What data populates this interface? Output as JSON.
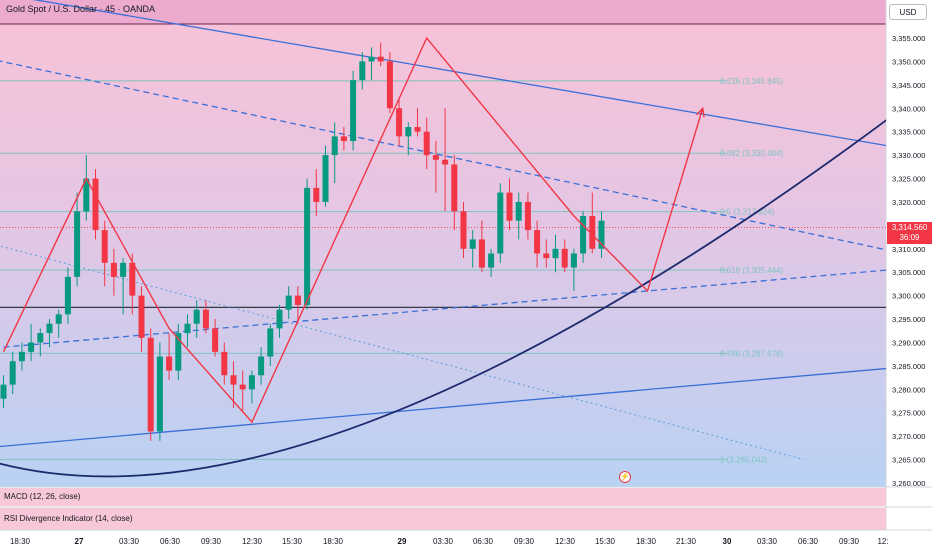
{
  "header": {
    "title": "Gold Spot / U.S. Dollar · 45 · OANDA",
    "currency": "USD"
  },
  "price_tag": {
    "price": "3,314.560",
    "countdown": "36:09"
  },
  "indicators": [
    {
      "label": "MACD (12, 26, close)"
    },
    {
      "label": "RSI Divergence Indicator (14, close)"
    }
  ],
  "event_icon": "lightning-icon",
  "colors": {
    "up": "#089981",
    "down": "#f23645",
    "zigzag": "#f23645",
    "trend_blue": "#3a6fd8",
    "curve": "#1e2a6e",
    "fib": "#7fc3c0",
    "support": "#363a45"
  },
  "chart_data": {
    "type": "candlestick",
    "y_range": [
      3260,
      3358
    ],
    "y_ticks": [
      "3,355.000",
      "3,350.000",
      "3,345.000",
      "3,340.000",
      "3,335.000",
      "3,330.000",
      "3,325.000",
      "3,320.000",
      "3,315.000",
      "3,310.000",
      "3,305.000",
      "3,300.000",
      "3,295.000",
      "3,290.000",
      "3,285.000",
      "3,280.000",
      "3,275.000",
      "3,270.000",
      "3,265.000",
      "3,260.000"
    ],
    "x_ticks": [
      "18:30",
      "27",
      "03:30",
      "06:30",
      "09:30",
      "12:30",
      "15:30",
      "18:30",
      "29",
      "03:30",
      "06:30",
      "09:30",
      "12:30",
      "15:30",
      "18:30",
      "21:30",
      "30",
      "03:30",
      "06:30",
      "09:30",
      "12:"
    ],
    "fib_levels": [
      {
        "label": "0.236 (3,345.845)",
        "price": 3345.845
      },
      {
        "label": "0.382 (3,330.404)",
        "price": 3330.404
      },
      {
        "label": "0.5 (3,317.924)",
        "price": 3317.924
      },
      {
        "label": "0.618 (3,305.444)",
        "price": 3305.444
      },
      {
        "label": "0.786 (3,287.676)",
        "price": 3287.676
      },
      {
        "label": "1 (3,265.043)",
        "price": 3265.043
      }
    ],
    "current_price": 3314.56,
    "support_level": 3297.5,
    "candles": [
      [
        3278,
        3283,
        3276,
        3281
      ],
      [
        3281,
        3288,
        3279,
        3286
      ],
      [
        3286,
        3290,
        3284,
        3288
      ],
      [
        3288,
        3294,
        3286,
        3290
      ],
      [
        3290,
        3293,
        3287,
        3292
      ],
      [
        3292,
        3295,
        3289,
        3294
      ],
      [
        3294,
        3297,
        3291,
        3296
      ],
      [
        3296,
        3306,
        3294,
        3304
      ],
      [
        3304,
        3322,
        3302,
        3318
      ],
      [
        3318,
        3330,
        3316,
        3325
      ],
      [
        3325,
        3327,
        3312,
        3314
      ],
      [
        3314,
        3316,
        3302,
        3307
      ],
      [
        3307,
        3310,
        3300,
        3304
      ],
      [
        3304,
        3308,
        3296,
        3307
      ],
      [
        3307,
        3309,
        3296,
        3300
      ],
      [
        3300,
        3302,
        3288,
        3291
      ],
      [
        3291,
        3293,
        3269,
        3271
      ],
      [
        3271,
        3290,
        3269,
        3287
      ],
      [
        3287,
        3292,
        3282,
        3284
      ],
      [
        3284,
        3294,
        3282,
        3292
      ],
      [
        3292,
        3296,
        3289,
        3294
      ],
      [
        3294,
        3299,
        3291,
        3297
      ],
      [
        3297,
        3299,
        3292,
        3293
      ],
      [
        3293,
        3295,
        3287,
        3288
      ],
      [
        3288,
        3290,
        3281,
        3283
      ],
      [
        3283,
        3286,
        3276,
        3281
      ],
      [
        3281,
        3284,
        3275,
        3280
      ],
      [
        3280,
        3284,
        3277,
        3283
      ],
      [
        3283,
        3289,
        3281,
        3287
      ],
      [
        3287,
        3294,
        3285,
        3293
      ],
      [
        3293,
        3298,
        3291,
        3297
      ],
      [
        3297,
        3302,
        3295,
        3300
      ],
      [
        3300,
        3302,
        3294,
        3298
      ],
      [
        3298,
        3325,
        3297,
        3323
      ],
      [
        3323,
        3327,
        3317,
        3320
      ],
      [
        3320,
        3332,
        3319,
        3330
      ],
      [
        3330,
        3337,
        3324,
        3334
      ],
      [
        3334,
        3336,
        3331,
        3333
      ],
      [
        3333,
        3348,
        3331,
        3346
      ],
      [
        3346,
        3352,
        3344,
        3350
      ],
      [
        3350,
        3353,
        3346,
        3351
      ],
      [
        3351,
        3354,
        3349,
        3350
      ],
      [
        3350,
        3352,
        3339,
        3340
      ],
      [
        3340,
        3342,
        3332,
        3334
      ],
      [
        3334,
        3337,
        3330,
        3336
      ],
      [
        3336,
        3340,
        3334,
        3335
      ],
      [
        3335,
        3338,
        3327,
        3330
      ],
      [
        3330,
        3333,
        3322,
        3329
      ],
      [
        3329,
        3340,
        3318,
        3328
      ],
      [
        3328,
        3330,
        3314,
        3318
      ],
      [
        3318,
        3320,
        3308,
        3310
      ],
      [
        3310,
        3314,
        3306,
        3312
      ],
      [
        3312,
        3316,
        3305,
        3306
      ],
      [
        3306,
        3310,
        3304,
        3309
      ],
      [
        3309,
        3324,
        3307,
        3322
      ],
      [
        3322,
        3325,
        3314,
        3316
      ],
      [
        3316,
        3322,
        3312,
        3320
      ],
      [
        3320,
        3322,
        3312,
        3314
      ],
      [
        3314,
        3316,
        3306,
        3309
      ],
      [
        3309,
        3312,
        3306,
        3308
      ],
      [
        3308,
        3313,
        3305,
        3310
      ],
      [
        3310,
        3312,
        3305,
        3306
      ],
      [
        3306,
        3310,
        3301,
        3309
      ],
      [
        3309,
        3318,
        3307,
        3317
      ],
      [
        3317,
        3322,
        3309,
        3310
      ],
      [
        3310,
        3318,
        3308,
        3316
      ]
    ],
    "zigzag": [
      [
        0,
        3288
      ],
      [
        9,
        3325
      ],
      [
        18,
        3293
      ],
      [
        27,
        3273
      ],
      [
        46,
        3355
      ],
      [
        62,
        3317
      ],
      [
        70,
        3301
      ],
      [
        76,
        3340
      ]
    ],
    "trendlines": [
      {
        "style": "solid",
        "color": "blue",
        "from": [
          -5,
          3366
        ],
        "to": [
          105,
          3329
        ]
      },
      {
        "style": "dashed",
        "color": "blue",
        "from": [
          -5,
          3352
        ],
        "to": [
          105,
          3306
        ]
      },
      {
        "style": "dashed",
        "color": "blue",
        "from": [
          0,
          3289
        ],
        "to": [
          105,
          3307
        ]
      },
      {
        "style": "dotted",
        "color": "blue",
        "from": [
          -5,
          3313
        ],
        "to": [
          87,
          3265
        ]
      },
      {
        "style": "solid",
        "color": "blue",
        "from": [
          -5,
          3267
        ],
        "to": [
          105,
          3286
        ]
      }
    ],
    "curve": {
      "from": [
        -5,
        3267
      ],
      "through": [
        41,
        3274
      ],
      "to": [
        105,
        3351
      ]
    }
  }
}
